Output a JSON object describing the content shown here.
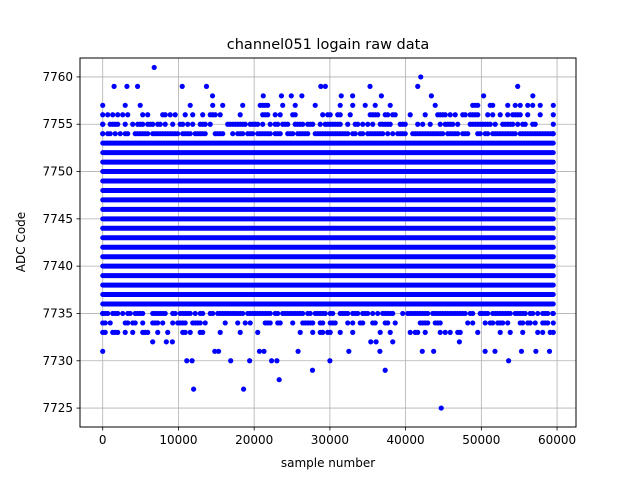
{
  "chart_data": {
    "type": "scatter",
    "title": "channel051 logain raw data",
    "xlabel": "sample number",
    "ylabel": "ADC Code",
    "xlim": [
      -3000,
      62500
    ],
    "ylim": [
      7723,
      7762
    ],
    "x_ticks": [
      0,
      10000,
      20000,
      30000,
      40000,
      50000,
      60000
    ],
    "y_ticks": [
      7725,
      7730,
      7735,
      7740,
      7745,
      7750,
      7755,
      7760
    ],
    "grid": true,
    "marker_color": "#0000ff",
    "x_range": [
      0,
      59500
    ],
    "dense_band": [
      7736,
      7753
    ],
    "outliers": [
      {
        "x": 6800,
        "y": 7761
      },
      {
        "x": 42000,
        "y": 7760
      },
      {
        "x": 1500,
        "y": 7759
      },
      {
        "x": 3200,
        "y": 7759
      },
      {
        "x": 4600,
        "y": 7759
      },
      {
        "x": 10500,
        "y": 7759
      },
      {
        "x": 13700,
        "y": 7759
      },
      {
        "x": 28800,
        "y": 7759
      },
      {
        "x": 29400,
        "y": 7759
      },
      {
        "x": 35300,
        "y": 7759
      },
      {
        "x": 41600,
        "y": 7759
      },
      {
        "x": 54800,
        "y": 7759
      },
      {
        "x": 14500,
        "y": 7758
      },
      {
        "x": 21200,
        "y": 7758
      },
      {
        "x": 23600,
        "y": 7758
      },
      {
        "x": 24900,
        "y": 7758
      },
      {
        "x": 26300,
        "y": 7758
      },
      {
        "x": 31500,
        "y": 7758
      },
      {
        "x": 33000,
        "y": 7758
      },
      {
        "x": 36800,
        "y": 7758
      },
      {
        "x": 43400,
        "y": 7758
      },
      {
        "x": 50300,
        "y": 7758
      },
      {
        "x": 56800,
        "y": 7758
      },
      {
        "x": 12000,
        "y": 7727
      },
      {
        "x": 18600,
        "y": 7727
      },
      {
        "x": 23300,
        "y": 7728
      },
      {
        "x": 27700,
        "y": 7729
      },
      {
        "x": 37300,
        "y": 7729
      },
      {
        "x": 44700,
        "y": 7725
      },
      {
        "x": 11100,
        "y": 7730
      },
      {
        "x": 11800,
        "y": 7730
      },
      {
        "x": 16900,
        "y": 7730
      },
      {
        "x": 19400,
        "y": 7730
      },
      {
        "x": 22300,
        "y": 7730
      },
      {
        "x": 23000,
        "y": 7730
      },
      {
        "x": 30000,
        "y": 7730
      },
      {
        "x": 53600,
        "y": 7730
      },
      {
        "x": 0,
        "y": 7731
      },
      {
        "x": 14800,
        "y": 7731
      },
      {
        "x": 15300,
        "y": 7731
      },
      {
        "x": 20700,
        "y": 7731
      },
      {
        "x": 21300,
        "y": 7731
      },
      {
        "x": 25800,
        "y": 7731
      },
      {
        "x": 32500,
        "y": 7731
      },
      {
        "x": 36600,
        "y": 7731
      },
      {
        "x": 42200,
        "y": 7731
      },
      {
        "x": 43700,
        "y": 7731
      },
      {
        "x": 50500,
        "y": 7731
      },
      {
        "x": 51800,
        "y": 7731
      },
      {
        "x": 55300,
        "y": 7731
      },
      {
        "x": 57200,
        "y": 7731
      },
      {
        "x": 59000,
        "y": 7731
      },
      {
        "x": 6600,
        "y": 7732
      },
      {
        "x": 8400,
        "y": 7732
      },
      {
        "x": 9200,
        "y": 7732
      },
      {
        "x": 35400,
        "y": 7732
      },
      {
        "x": 36100,
        "y": 7732
      },
      {
        "x": 38300,
        "y": 7732
      },
      {
        "x": 47100,
        "y": 7732
      }
    ]
  }
}
